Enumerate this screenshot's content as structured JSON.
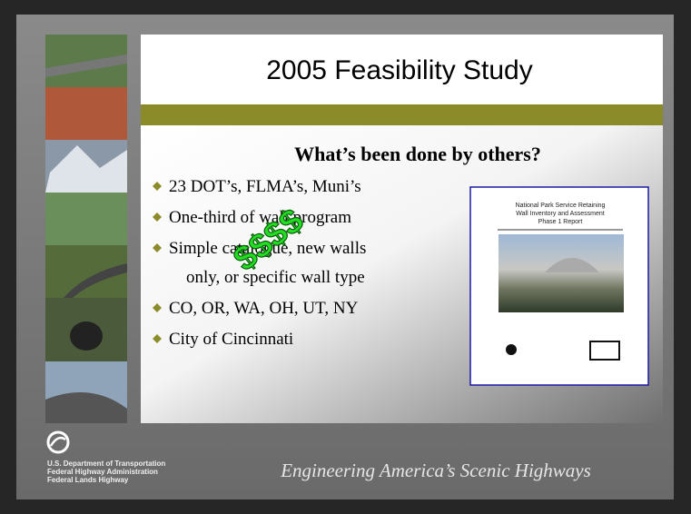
{
  "slide": {
    "title": "2005 Feasibility Study",
    "subtitle": "What’s been done by others?",
    "bullets": [
      "23 DOT’s, FLMA’s, Muni’s",
      "One-third of wall program",
      "Simple catalogue, new walls",
      "only, or specific wall type",
      "CO, OR, WA, OH, UT, NY",
      "City of Cincinnati"
    ],
    "overlay": "$$$$",
    "report": {
      "title": [
        "National Park Service Retaining",
        "Wall Inventory and Assessment",
        "Phase 1 Report"
      ]
    },
    "footer": {
      "agency": [
        "U.S. Department of Transportation",
        "Federal Highway Administration",
        "Federal Lands Highway"
      ],
      "slogan": "Engineering America’s Scenic Highways"
    }
  }
}
